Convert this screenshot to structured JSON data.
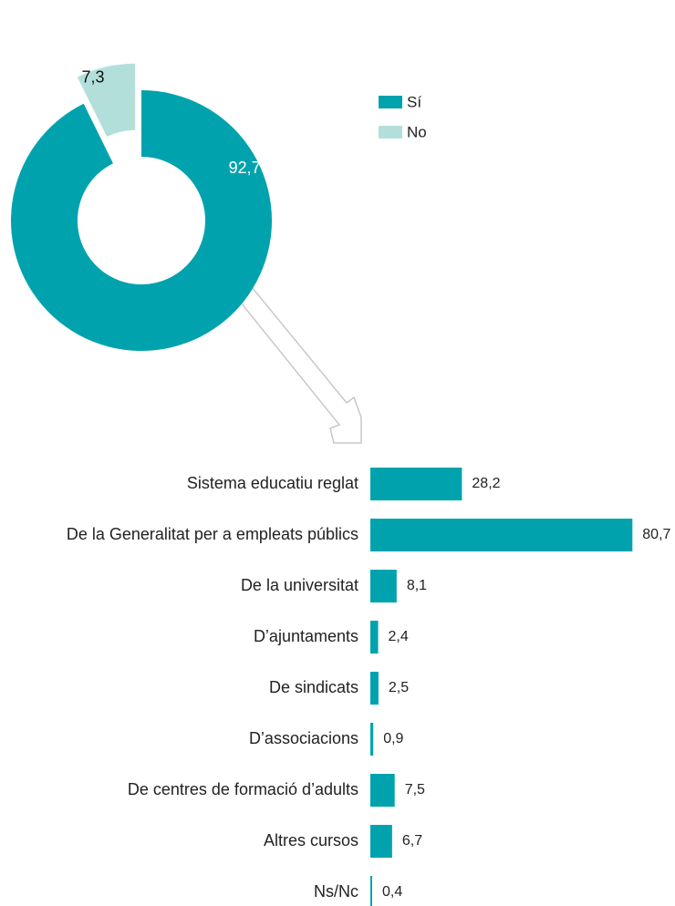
{
  "chart_data": [
    {
      "type": "donut",
      "categories": [
        "Sí",
        "No"
      ],
      "values": [
        92.7,
        7.3
      ],
      "value_labels": [
        "92,7",
        "7,3"
      ],
      "colors": [
        "#00a3ad",
        "#b3dfdb"
      ],
      "legend": "right"
    },
    {
      "type": "hbar",
      "categories": [
        "Sistema educatiu reglat",
        "De la Generalitat per a empleats públics",
        "De la universitat",
        "D’ajuntaments",
        "De sindicats",
        "D’associacions",
        "De centres de formació d’adults",
        "Altres cursos",
        "Ns/Nc"
      ],
      "values": [
        28.2,
        80.7,
        8.1,
        2.4,
        2.5,
        0.9,
        7.5,
        6.7,
        0.4
      ],
      "value_labels": [
        "28,2",
        "80,7",
        "8,1",
        "2,4",
        "2,5",
        "0,9",
        "7,5",
        "6,7",
        "0,4"
      ],
      "color": "#00a3ad"
    }
  ]
}
